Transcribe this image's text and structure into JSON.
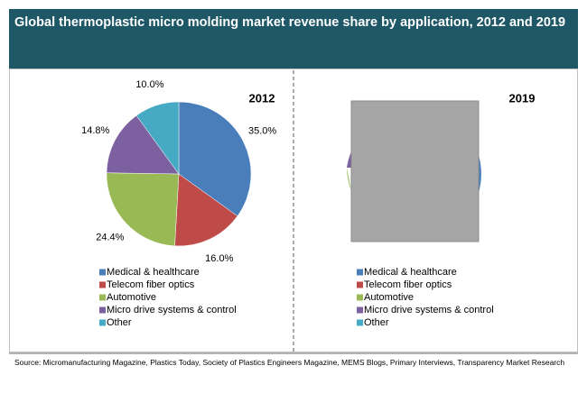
{
  "title": "Global thermoplastic micro molding market revenue share by application, 2012 and 2019",
  "source": "Source: Micromanufacturing Magazine, Plastics Today, Society of Plastics Engineers Magazine, MEMS Blogs, Primary Interviews, Transparency Market Research",
  "chart_data": [
    {
      "type": "pie",
      "title": "2012",
      "categories": [
        "Medical & healthcare",
        "Telecom fiber optics",
        "Automotive",
        "Micro drive systems & control",
        "Other"
      ],
      "values": [
        35.0,
        16.0,
        24.4,
        14.8,
        10.0
      ],
      "value_labels": [
        "35.0%",
        "16.0%",
        "24.4%",
        "14.8%",
        "10.0%"
      ],
      "colors": [
        "#4a7ebb",
        "#be4b48",
        "#98b954",
        "#7d60a0",
        "#46aac5"
      ]
    },
    {
      "type": "pie",
      "title": "2019",
      "categories": [
        "Medical & healthcare",
        "Telecom fiber optics",
        "Automotive",
        "Micro drive systems & control",
        "Other"
      ],
      "colors": [
        "#4a7ebb",
        "#be4b48",
        "#98b954",
        "#7d60a0",
        "#46aac5"
      ]
    }
  ]
}
